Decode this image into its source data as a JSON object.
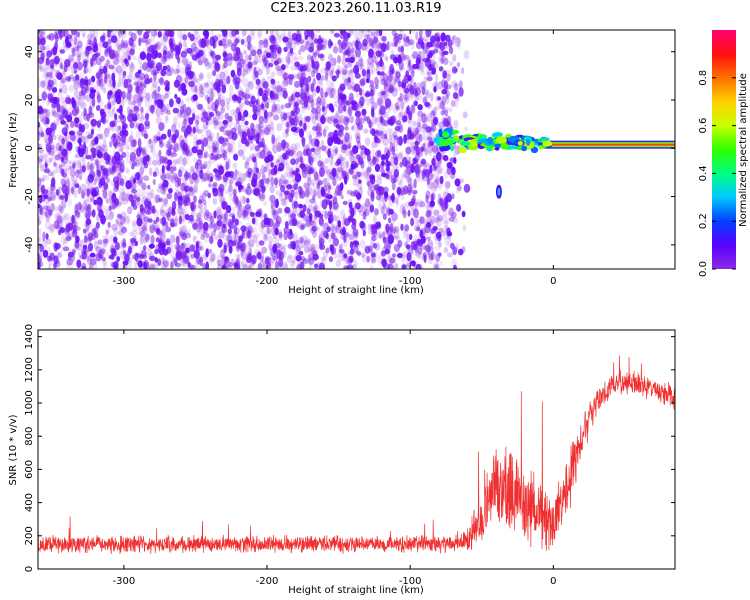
{
  "title": "C2E3.2023.260.11.03.R19",
  "chart_data": [
    {
      "type": "heatmap",
      "xlabel": "Height of straight line (km)",
      "ylabel": "Frequency (Hz)",
      "xlim": [
        -360,
        85
      ],
      "ylim": [
        -50,
        49
      ],
      "xticks": [
        -300,
        -200,
        -100,
        0
      ],
      "yticks": [
        -40,
        -20,
        0,
        20,
        40
      ],
      "colorbar": {
        "label": "Normalized spectral amplitude",
        "range": [
          0.0,
          1.0
        ],
        "ticks": [
          0.0,
          0.2,
          0.4,
          0.6,
          0.8
        ],
        "colormap": [
          "#8a2be2",
          "#5a00ff",
          "#0040ff",
          "#00c8ff",
          "#00ff80",
          "#30ff00",
          "#c8ff00",
          "#ffd000",
          "#ff7000",
          "#ff1010",
          "#ff0070"
        ]
      },
      "features": {
        "noise_x_range": [
          -360,
          -80
        ],
        "noise_amplitude_range": [
          0.0,
          0.15
        ],
        "carrier_x_range": [
          -80,
          85
        ],
        "carrier_frequency": 1.5,
        "carrier_amplitude": 0.85,
        "secondary_blob": {
          "x": -38,
          "frequency": -18,
          "amplitude": 0.1
        }
      }
    },
    {
      "type": "line",
      "xlabel": "Height of straight line (km)",
      "ylabel": "SNR (10 * v/v)",
      "xlim": [
        -360,
        85
      ],
      "ylim": [
        0,
        1440
      ],
      "xticks": [
        -300,
        -200,
        -100,
        0
      ],
      "yticks": [
        0,
        200,
        400,
        600,
        800,
        1000,
        1200,
        1400
      ],
      "color": "#f03030",
      "profile": {
        "x": [
          -360,
          -150,
          -70,
          -60,
          -50,
          -40,
          -30,
          -20,
          -10,
          0,
          10,
          20,
          30,
          40,
          50,
          60,
          70,
          80,
          85
        ],
        "baseline": [
          150,
          150,
          150,
          180,
          300,
          500,
          450,
          380,
          350,
          280,
          500,
          800,
          1000,
          1100,
          1130,
          1110,
          1080,
          1050,
          1040
        ],
        "spread": [
          80,
          80,
          80,
          120,
          250,
          350,
          400,
          350,
          300,
          250,
          300,
          200,
          120,
          110,
          110,
          110,
          110,
          120,
          120
        ]
      }
    }
  ]
}
